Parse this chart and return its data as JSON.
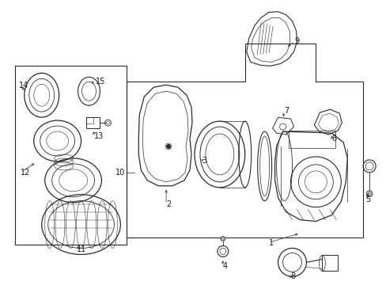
{
  "bg_color": "#ffffff",
  "fig_width": 4.89,
  "fig_height": 3.6,
  "dpi": 100,
  "line_color": "#2a2a2a",
  "text_color": "#1a1a1a",
  "label_font_size": 7.0
}
